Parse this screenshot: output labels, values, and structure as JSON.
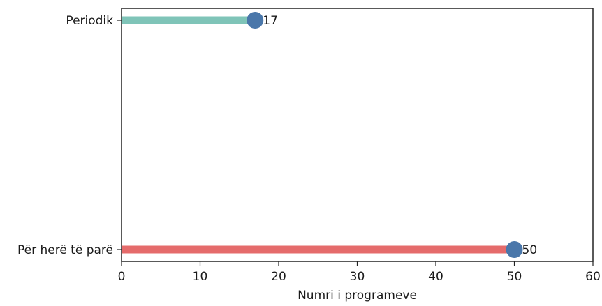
{
  "chart_data": {
    "type": "lollipop",
    "orientation": "horizontal",
    "categories": [
      "Periodik",
      "Për herë të parë"
    ],
    "values": [
      17,
      50
    ],
    "value_labels": [
      "17",
      "50"
    ],
    "bar_colors": [
      "#7fc4b8",
      "#e56b6b"
    ],
    "marker_color": "#4a77aa",
    "xlabel": "Numri i programeve",
    "xlim": [
      0,
      60
    ],
    "xticks": [
      0,
      10,
      20,
      30,
      40,
      50,
      60
    ],
    "grid": false
  }
}
